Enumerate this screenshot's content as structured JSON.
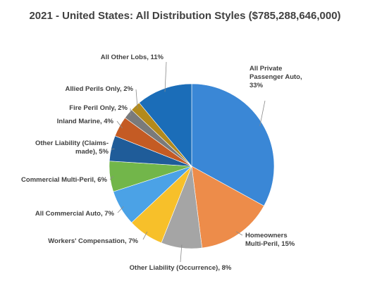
{
  "chart_data": {
    "type": "pie",
    "title": "2021 - United States: All Distribution Styles ($785,288,646,000)",
    "slices": [
      {
        "label": "All Private Passenger Auto, 33%",
        "value": 33,
        "color": "#3a87d6"
      },
      {
        "label": "Homeowners Multi-Peril, 15%",
        "value": 15,
        "color": "#ed8c4a"
      },
      {
        "label": "Other Liability (Occurrence), 8%",
        "value": 8,
        "color": "#a5a5a5"
      },
      {
        "label": "Workers' Compensation, 7%",
        "value": 7,
        "color": "#f7c02a"
      },
      {
        "label": "All Commercial Auto, 7%",
        "value": 7,
        "color": "#4ba2e6"
      },
      {
        "label": "Commercial Multi-Peril, 6%",
        "value": 6,
        "color": "#72b64a"
      },
      {
        "label": "Other Liability (Claims-made), 5%",
        "value": 5,
        "color": "#1f5c99"
      },
      {
        "label": "Inland Marine, 4%",
        "value": 4,
        "color": "#c45b24"
      },
      {
        "label": "Fire Peril Only, 2%",
        "value": 2,
        "color": "#7a7a7a"
      },
      {
        "label": "Allied Perils Only, 2%",
        "value": 2,
        "color": "#b38a1c"
      },
      {
        "label": "All Other Lobs, 11%",
        "value": 11,
        "color": "#1b6db8"
      }
    ]
  }
}
